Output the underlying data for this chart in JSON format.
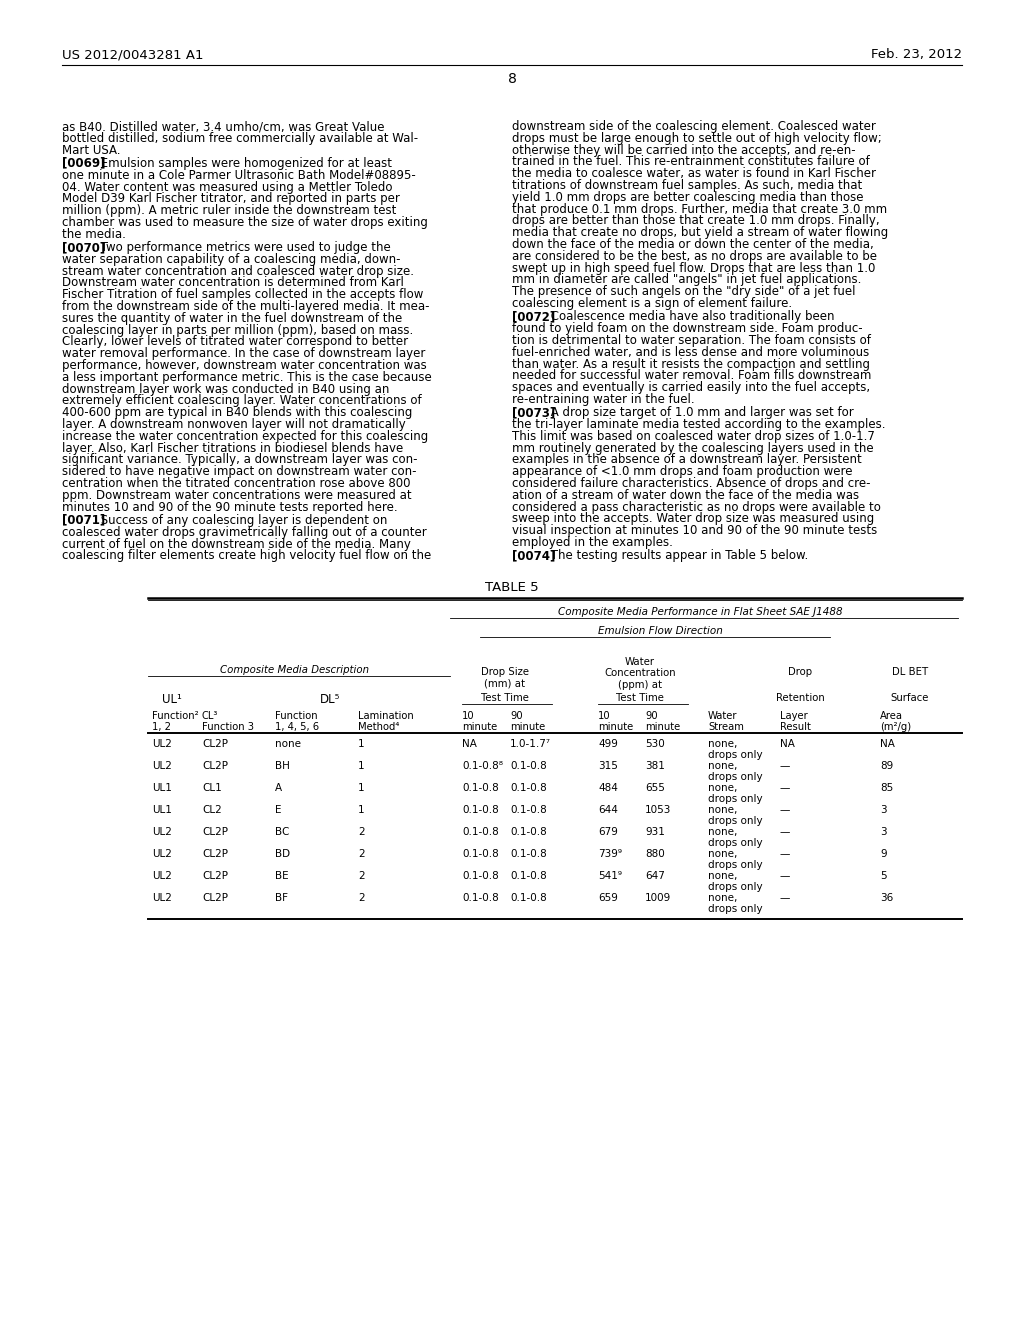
{
  "page_left": "US 2012/0043281 A1",
  "page_right": "Feb. 23, 2012",
  "page_number": "8",
  "bg_color": "#ffffff",
  "text_color": "#000000",
  "font_size_body": 8.5,
  "left_col_text": [
    "as B40. Distilled water, 3.4 umho/cm, was Great Value\nbottled distilled, sodium free commercially available at Wal-\nMart USA.",
    "[0069] Emulsion samples were homogenized for at least\none minute in a Cole Parmer Ultrasonic Bath Model#08895-\n04. Water content was measured using a Mettler Toledo\nModel D39 Karl Fischer titrator, and reported in parts per\nmillion (ppm). A metric ruler inside the downstream test\nchamber was used to measure the size of water drops exiting\nthe media.",
    "[0070] Two performance metrics were used to judge the\nwater separation capability of a coalescing media, down-\nstream water concentration and coalesced water drop size.\nDownstream water concentration is determined from Karl\nFischer Titration of fuel samples collected in the accepts flow\nfrom the downstream side of the multi-layered media. It mea-\nsures the quantity of water in the fuel downstream of the\ncoalescing layer in parts per million (ppm), based on mass.\nClearly, lower levels of titrated water correspond to better\nwater removal performance. In the case of downstream layer\nperformance, however, downstream water concentration was\na less important performance metric. This is the case because\ndownstream layer work was conducted in B40 using an\nextremely efficient coalescing layer. Water concentrations of\n400-600 ppm are typical in B40 blends with this coalescing\nlayer. A downstream nonwoven layer will not dramatically\nincrease the water concentration expected for this coalescing\nlayer. Also, Karl Fischer titrations in biodiesel blends have\nsignificant variance. Typically, a downstream layer was con-\nsidered to have negative impact on downstream water con-\ncentration when the titrated concentration rose above 800\nppm. Downstream water concentrations were measured at\nminutes 10 and 90 of the 90 minute tests reported here.",
    "[0071] Success of any coalescing layer is dependent on\ncoalesced water drops gravimetrically falling out of a counter\ncurrent of fuel on the downstream side of the media. Many\ncoalescing filter elements create high velocity fuel flow on the"
  ],
  "right_col_text": [
    "downstream side of the coalescing element. Coalesced water\ndrops must be large enough to settle out of high velocity flow;\notherwise they will be carried into the accepts, and re-en-\ntrained in the fuel. This re-entrainment constitutes failure of\nthe media to coalesce water, as water is found in Karl Fischer\ntitrations of downstream fuel samples. As such, media that\nyield 1.0 mm drops are better coalescing media than those\nthat produce 0.1 mm drops. Further, media that create 3.0 mm\ndrops are better than those that create 1.0 mm drops. Finally,\nmedia that create no drops, but yield a stream of water flowing\ndown the face of the media or down the center of the media,\nare considered to be the best, as no drops are available to be\nswept up in high speed fuel flow. Drops that are less than 1.0\nmm in diameter are called \"angels\" in jet fuel applications.\nThe presence of such angels on the \"dry side\" of a jet fuel\ncoalescing element is a sign of element failure.",
    "[0072] Coalescence media have also traditionally been\nfound to yield foam on the downstream side. Foam produc-\ntion is detrimental to water separation. The foam consists of\nfuel-enriched water, and is less dense and more voluminous\nthan water. As a result it resists the compaction and settling\nneeded for successful water removal. Foam fills downstream\nspaces and eventually is carried easily into the fuel accepts,\nre-entraining water in the fuel.",
    "[0073] A drop size target of 1.0 mm and larger was set for\nthe tri-layer laminate media tested according to the examples.\nThis limit was based on coalesced water drop sizes of 1.0-1.7\nmm routinely generated by the coalescing layers used in the\nexamples in the absence of a downstream layer. Persistent\nappearance of <1.0 mm drops and foam production were\nconsidered failure characteristics. Absence of drops and cre-\nation of a stream of water down the face of the media was\nconsidered a pass characteristic as no drops were available to\nsweep into the accepts. Water drop size was measured using\nvisual inspection at minutes 10 and 90 of the 90 minute tests\nemployed in the examples.",
    "[0074] The testing results appear in Table 5 below."
  ],
  "table_title": "TABLE 5",
  "table_data": [
    [
      "UL2",
      "CL2P",
      "none",
      "1",
      "NA",
      "1.0-1.7⁷",
      "499",
      "530",
      "none,\ndrops only",
      "NA",
      "NA"
    ],
    [
      "UL2",
      "CL2P",
      "BH",
      "1",
      "0.1-0.8⁸",
      "0.1-0.8",
      "315",
      "381",
      "none,\ndrops only",
      "—",
      "89"
    ],
    [
      "UL1",
      "CL1",
      "A",
      "1",
      "0.1-0.8",
      "0.1-0.8",
      "484",
      "655",
      "none,\ndrops only",
      "—",
      "85"
    ],
    [
      "UL1",
      "CL2",
      "E",
      "1",
      "0.1-0.8",
      "0.1-0.8",
      "644",
      "1053",
      "none,\ndrops only",
      "—",
      "3"
    ],
    [
      "UL2",
      "CL2P",
      "BC",
      "2",
      "0.1-0.8",
      "0.1-0.8",
      "679",
      "931",
      "none,\ndrops only",
      "—",
      "3"
    ],
    [
      "UL2",
      "CL2P",
      "BD",
      "2",
      "0.1-0.8",
      "0.1-0.8",
      "739⁹",
      "880",
      "none,\ndrops only",
      "—",
      "9"
    ],
    [
      "UL2",
      "CL2P",
      "BE",
      "2",
      "0.1-0.8",
      "0.1-0.8",
      "541⁹",
      "647",
      "none,\ndrops only",
      "—",
      "5"
    ],
    [
      "UL2",
      "CL2P",
      "BF",
      "2",
      "0.1-0.8",
      "0.1-0.8",
      "659",
      "1009",
      "none,\ndrops only",
      "—",
      "36"
    ]
  ]
}
